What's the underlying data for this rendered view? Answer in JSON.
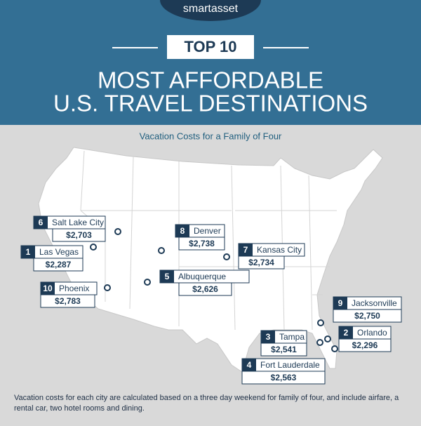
{
  "header": {
    "logo": "smartasset",
    "badge": "TOP 10",
    "title_lines": [
      "MOST AFFORDABLE",
      "U.S. TRAVEL DESTINATIONS"
    ]
  },
  "subtitle": "Vacation Costs for a Family of Four",
  "cities": [
    {
      "rank": 1,
      "name": "Las Vegas",
      "cost": "$2,287"
    },
    {
      "rank": 2,
      "name": "Orlando",
      "cost": "$2,296"
    },
    {
      "rank": 3,
      "name": "Tampa",
      "cost": "$2,541"
    },
    {
      "rank": 4,
      "name": "Fort Lauderdale",
      "cost": "$2,563"
    },
    {
      "rank": 5,
      "name": "Albuquerque",
      "cost": "$2,626"
    },
    {
      "rank": 6,
      "name": "Salt Lake City",
      "cost": "$2,703"
    },
    {
      "rank": 7,
      "name": "Kansas City",
      "cost": "$2,734"
    },
    {
      "rank": 8,
      "name": "Denver",
      "cost": "$2,738"
    },
    {
      "rank": 9,
      "name": "Jacksonville",
      "cost": "$2,750"
    },
    {
      "rank": 10,
      "name": "Phoenix",
      "cost": "$2,783"
    }
  ],
  "footnote": "Vacation costs for each city are calculated based on a three day weekend for family of four, and include airfare, a rental car, two hotel rooms and dining."
}
